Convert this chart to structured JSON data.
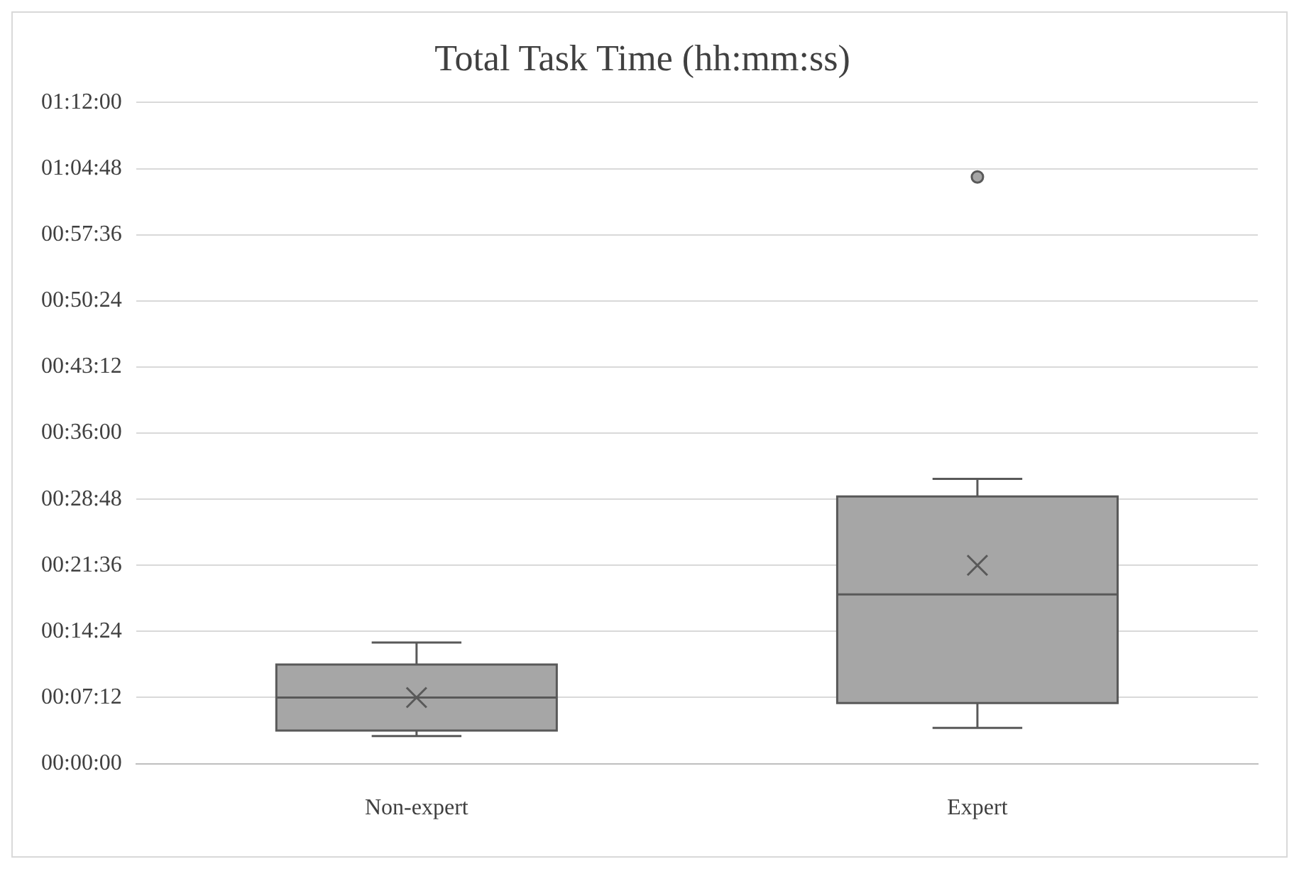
{
  "chart_data": {
    "type": "box",
    "title": "Total Task Time (hh:mm:ss)",
    "categories": [
      "Non-expert",
      "Expert"
    ],
    "series": [
      {
        "color": "#a6a6a6",
        "boxes": [
          {
            "low": 0.05,
            "q1": 0.06,
            "median": 0.12,
            "q3": 0.18,
            "high": 0.22,
            "mean": 0.12
          },
          {
            "low": 0.065,
            "q1": 0.11,
            "median": 0.307,
            "q3": 0.485,
            "high": 0.517,
            "mean": 0.36,
            "outliers": [
              1.065
            ]
          }
        ]
      }
    ],
    "ylim": [
      0,
      1.2
    ],
    "yticks": [
      {
        "value": 0,
        "label": "00:00:00"
      },
      {
        "value": 0.12,
        "label": "00:07:12"
      },
      {
        "value": 0.24,
        "label": "00:14:24"
      },
      {
        "value": 0.36,
        "label": "00:21:36"
      },
      {
        "value": 0.48,
        "label": "00:28:48"
      },
      {
        "value": 0.6,
        "label": "00:36:00"
      },
      {
        "value": 0.72,
        "label": "00:43:12"
      },
      {
        "value": 0.84,
        "label": "00:50:24"
      },
      {
        "value": 0.96,
        "label": "00:57:36"
      },
      {
        "value": 1.08,
        "label": "01:04:48"
      },
      {
        "value": 1.2,
        "label": "01:12:00"
      }
    ],
    "grid": "y"
  }
}
